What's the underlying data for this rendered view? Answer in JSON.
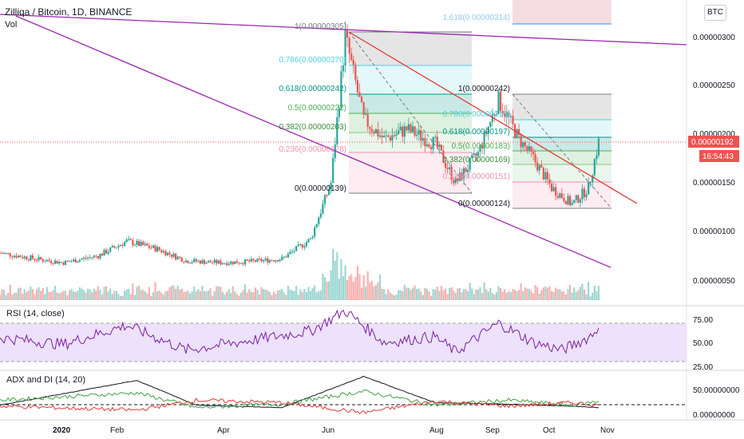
{
  "header": {
    "symbol_line": "Zilliqa / Bitcoin, 1D, BINANCE",
    "volume_label": "Vol",
    "currency_badge": "BTC"
  },
  "colors": {
    "up": "#26a69a",
    "down": "#ef5350",
    "channel": "#9c27b0",
    "trendline": "#e53935",
    "rsi_line": "#7b1fa2",
    "rsi_band": "#ede1fb",
    "adx_line": "#131722",
    "plus_di": "#43a047",
    "minus_di": "#e53935",
    "fib_1": "#787b86",
    "fib_0786": "#4dd0e1",
    "fib_0618": "#009688",
    "fib_05": "#4caf50",
    "fib_0382": "#81c784",
    "fib_0236": "#f48fb1",
    "fib_1618": "#2196f3",
    "price_tag": "#ef5350"
  },
  "price_axis": {
    "ticks": [
      "0.00000300",
      "0.00000250",
      "0.00000200",
      "0.00000150",
      "0.00000100",
      "0.00000050"
    ],
    "last_price": "0.00000192",
    "countdown": "16:54:43"
  },
  "time_axis": {
    "labels": [
      "2020",
      "Feb",
      "Apr",
      "Jun",
      "Aug",
      "Sep",
      "Oct",
      "Nov"
    ]
  },
  "fib_retracement_1": {
    "labels": [
      "1(0.00000305)",
      "0.786(0.00000270)",
      "0.618(0.00000242)",
      "0.5(0.00000222)",
      "0.382(0.00000203)",
      "0.236(0.00000178)",
      "0(0.00000139)"
    ]
  },
  "fib_retracement_2": {
    "labels": [
      "1.618(0.00000314)",
      "1(0.00000242)",
      "0.786(0.00000216)",
      "0.618(0.00000197)",
      "0.5(0.00000183)",
      "0.382(0.00000169)",
      "0.236(0.00000151)",
      "0(0.00000124)"
    ]
  },
  "rsi": {
    "title": "RSI (14, close)",
    "ticks": [
      "75.00",
      "50.00",
      "25.00"
    ],
    "upper": 70,
    "lower": 30
  },
  "adx": {
    "title": "ADX and DI (14, 20)",
    "ticks": [
      "50.00000000",
      "0.00000000"
    ]
  },
  "chart_data": {
    "type": "candlestick",
    "title": "Zilliqa / Bitcoin, 1D, BINANCE",
    "y_range": [
      4e-07,
      3.4e-06
    ],
    "x_range": [
      "2019-12-15",
      "2020-11-15"
    ],
    "series": [
      {
        "name": "ZIL/BTC",
        "points": [
          {
            "date": "2019-12-15",
            "close": 7.8e-07
          },
          {
            "date": "2020-01-01",
            "close": 7.2e-07
          },
          {
            "date": "2020-01-15",
            "close": 6.8e-07
          },
          {
            "date": "2020-02-01",
            "close": 7.5e-07
          },
          {
            "date": "2020-02-15",
            "close": 9e-07
          },
          {
            "date": "2020-03-01",
            "close": 8.2e-07
          },
          {
            "date": "2020-03-15",
            "close": 7e-07
          },
          {
            "date": "2020-04-01",
            "close": 6.8e-07
          },
          {
            "date": "2020-04-15",
            "close": 6.9e-07
          },
          {
            "date": "2020-05-01",
            "close": 7.2e-07
          },
          {
            "date": "2020-05-15",
            "close": 9.2e-07
          },
          {
            "date": "2020-05-25",
            "close": 1.5e-06
          },
          {
            "date": "2020-06-01",
            "close": 3e-06
          },
          {
            "date": "2020-06-10",
            "close": 2.15e-06
          },
          {
            "date": "2020-06-20",
            "close": 1.95e-06
          },
          {
            "date": "2020-07-01",
            "close": 2.05e-06
          },
          {
            "date": "2020-07-15",
            "close": 1.9e-06
          },
          {
            "date": "2020-07-25",
            "close": 1.5e-06
          },
          {
            "date": "2020-08-05",
            "close": 1.8e-06
          },
          {
            "date": "2020-08-15",
            "close": 2.35e-06
          },
          {
            "date": "2020-08-25",
            "close": 1.95e-06
          },
          {
            "date": "2020-09-01",
            "close": 1.75e-06
          },
          {
            "date": "2020-09-10",
            "close": 1.45e-06
          },
          {
            "date": "2020-09-20",
            "close": 1.28e-06
          },
          {
            "date": "2020-09-28",
            "close": 1.45e-06
          },
          {
            "date": "2020-10-03",
            "close": 1.92e-06
          }
        ]
      }
    ],
    "rsi_series": [
      {
        "date": "2019-12-15",
        "value": 55
      },
      {
        "date": "2020-01-15",
        "value": 48
      },
      {
        "date": "2020-02-15",
        "value": 68
      },
      {
        "date": "2020-03-15",
        "value": 42
      },
      {
        "date": "2020-04-15",
        "value": 52
      },
      {
        "date": "2020-05-15",
        "value": 62
      },
      {
        "date": "2020-06-01",
        "value": 83
      },
      {
        "date": "2020-06-20",
        "value": 50
      },
      {
        "date": "2020-07-15",
        "value": 56
      },
      {
        "date": "2020-07-25",
        "value": 40
      },
      {
        "date": "2020-08-15",
        "value": 70
      },
      {
        "date": "2020-09-01",
        "value": 50
      },
      {
        "date": "2020-09-15",
        "value": 42
      },
      {
        "date": "2020-09-28",
        "value": 55
      },
      {
        "date": "2020-10-03",
        "value": 65
      }
    ],
    "adx_series": [
      {
        "date": "2019-12-15",
        "adx": 20,
        "plus_di": 30,
        "minus_di": 18
      },
      {
        "date": "2020-02-20",
        "adx": 70,
        "plus_di": 45,
        "minus_di": 10
      },
      {
        "date": "2020-03-20",
        "adx": 20,
        "plus_di": 15,
        "minus_di": 30
      },
      {
        "date": "2020-05-01",
        "adx": 15,
        "plus_di": 22,
        "minus_di": 25
      },
      {
        "date": "2020-06-10",
        "adx": 78,
        "plus_di": 48,
        "minus_di": 5
      },
      {
        "date": "2020-07-15",
        "adx": 25,
        "plus_di": 20,
        "minus_di": 28
      },
      {
        "date": "2020-08-20",
        "adx": 22,
        "plus_di": 30,
        "minus_di": 18
      },
      {
        "date": "2020-09-20",
        "adx": 18,
        "plus_di": 20,
        "minus_di": 25
      },
      {
        "date": "2020-10-03",
        "adx": 15,
        "plus_di": 28,
        "minus_di": 20
      }
    ]
  }
}
